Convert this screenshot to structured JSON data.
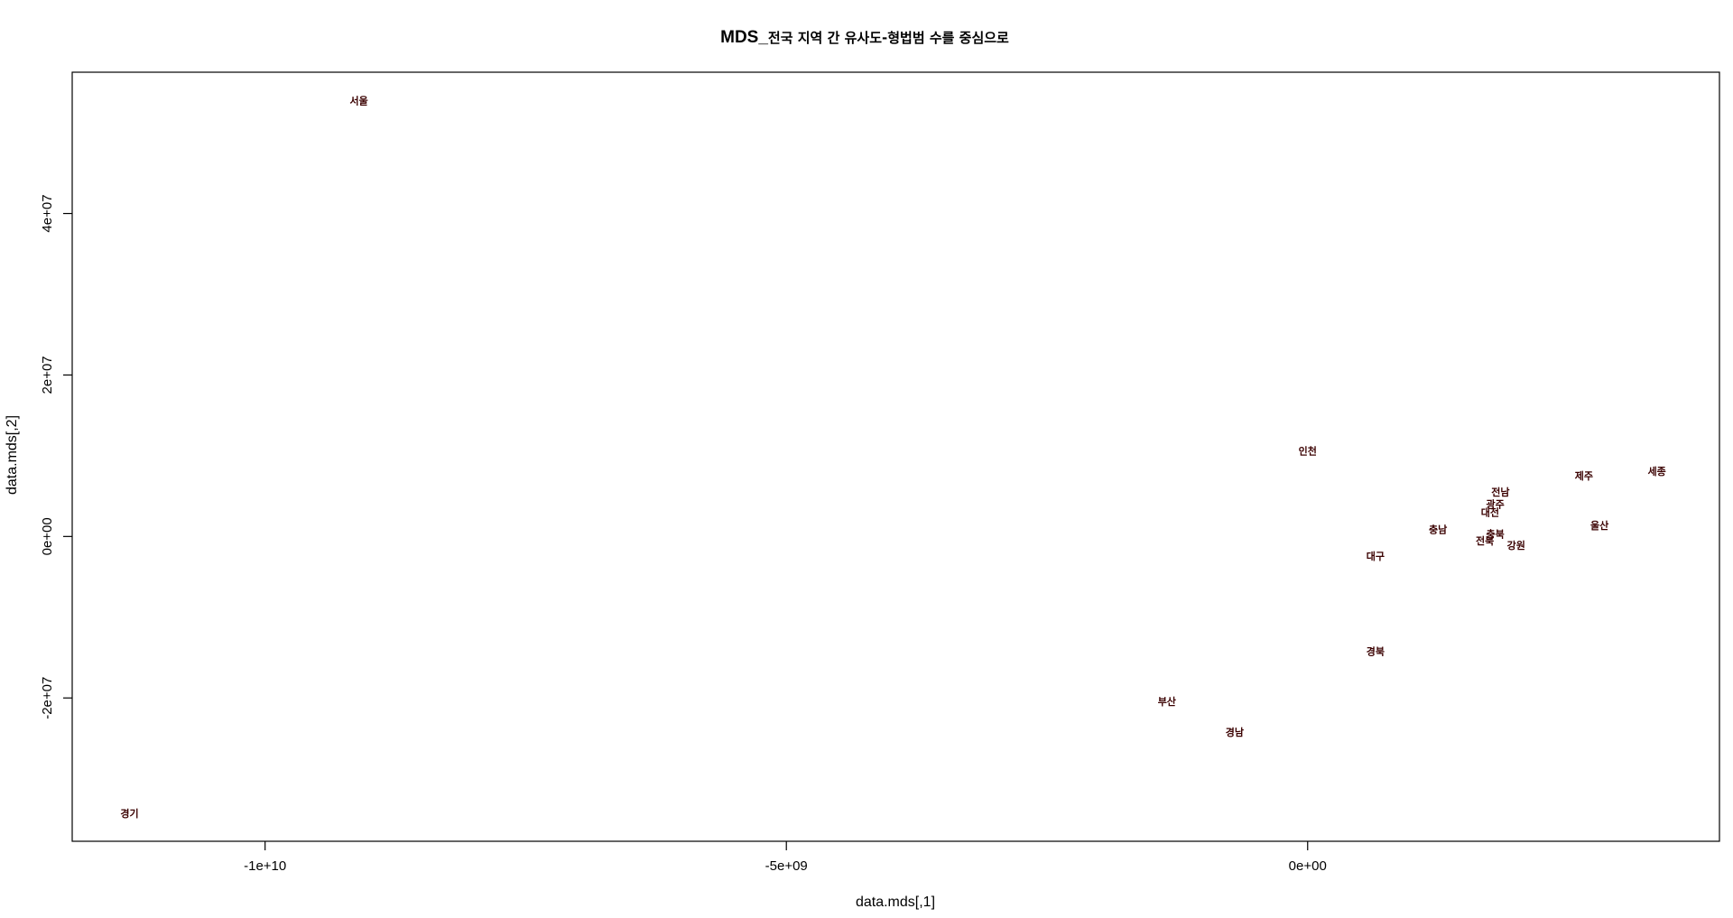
{
  "chart_data": {
    "type": "scatter",
    "title_prefix": "MDS_",
    "title_rest": "전국 지역 간 유사도-형법범 수를 중심으로",
    "xlabel": "data.mds[,1]",
    "ylabel": "data.mds[,2]",
    "xlim": [
      -11850000000,
      3950000000
    ],
    "ylim": [
      -37750000,
      57500000
    ],
    "xticks": [
      {
        "value": -10000000000,
        "label": "-1e+10"
      },
      {
        "value": -5000000000,
        "label": "-5e+09"
      },
      {
        "value": 0,
        "label": "0e+00"
      }
    ],
    "yticks": [
      {
        "value": -20000000,
        "label": "-2e+07"
      },
      {
        "value": 0,
        "label": "0e+00"
      },
      {
        "value": 20000000,
        "label": "2e+07"
      },
      {
        "value": 40000000,
        "label": "4e+07"
      }
    ],
    "grid": false,
    "points": [
      {
        "label": "서울",
        "x": -9100000000,
        "y": 54000000
      },
      {
        "label": "경기",
        "x": -11300000000,
        "y": -34300000
      },
      {
        "label": "인천",
        "x": 0,
        "y": 10600000
      },
      {
        "label": "세종",
        "x": 3350000000,
        "y": 8100000
      },
      {
        "label": "제주",
        "x": 2650000000,
        "y": 7500000
      },
      {
        "label": "전남",
        "x": 1850000000,
        "y": 5500000
      },
      {
        "label": "광주",
        "x": 1800000000,
        "y": 4000000
      },
      {
        "label": "대전",
        "x": 1750000000,
        "y": 3000000
      },
      {
        "label": "울산",
        "x": 2800000000,
        "y": 1400000
      },
      {
        "label": "충남",
        "x": 1250000000,
        "y": 900000
      },
      {
        "label": "충북",
        "x": 1800000000,
        "y": 300000
      },
      {
        "label": "전북",
        "x": 1700000000,
        "y": -500000
      },
      {
        "label": "강원",
        "x": 2000000000,
        "y": -1100000
      },
      {
        "label": "대구",
        "x": 650000000,
        "y": -2400000
      },
      {
        "label": "경북",
        "x": 650000000,
        "y": -14200000
      },
      {
        "label": "부산",
        "x": -1350000000,
        "y": -20400000
      },
      {
        "label": "경남",
        "x": -700000000,
        "y": -24200000
      }
    ]
  }
}
